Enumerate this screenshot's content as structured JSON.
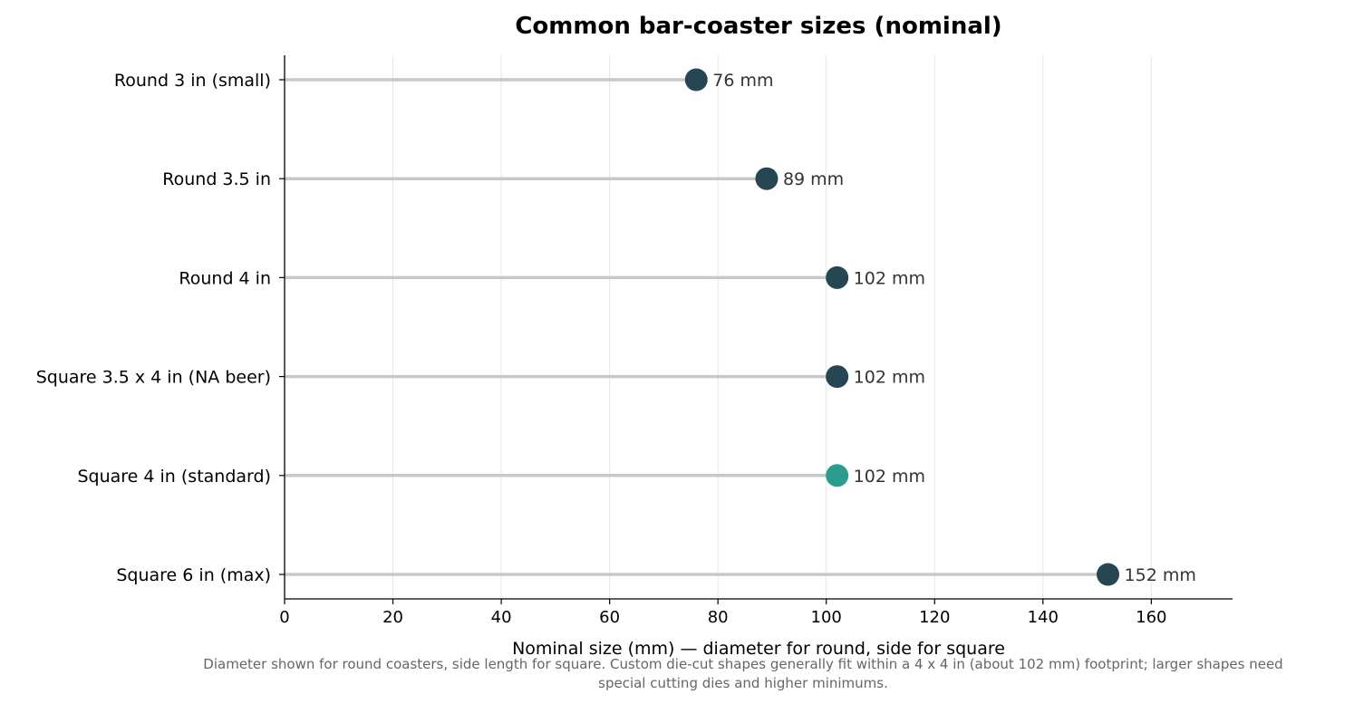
{
  "chart_data": {
    "type": "lollipop",
    "title": "Common bar-coaster sizes (nominal)",
    "xlabel": "Nominal size (mm) — diameter for round, side for square",
    "ylabel": "",
    "xlim": [
      0,
      175
    ],
    "xticks": [
      0,
      20,
      40,
      60,
      80,
      100,
      120,
      140,
      160
    ],
    "grid": "vertical",
    "categories": [
      "Round 3 in (small)",
      "Round 3.5 in",
      "Round 4 in",
      "Square 3.5 x 4 in (NA beer)",
      "Square 4 in (standard)",
      "Square 6 in (max)"
    ],
    "values": [
      76,
      89,
      102,
      102,
      102,
      152
    ],
    "value_labels": [
      "76 mm",
      "89 mm",
      "102 mm",
      "102 mm",
      "102 mm",
      "152 mm"
    ],
    "highlight_index": 4,
    "footnote": [
      "Diameter shown for round coasters, side length for square. Custom die-cut shapes generally fit within a 4 x 4 in (about 102 mm) footprint; larger shapes need",
      "special cutting dies and higher minimums."
    ]
  },
  "colors": {
    "marker": "#264653",
    "highlight": "#2a9d8f",
    "stem": "#c8c8c8",
    "grid": "#e6e6e6",
    "axis": "#000000"
  }
}
